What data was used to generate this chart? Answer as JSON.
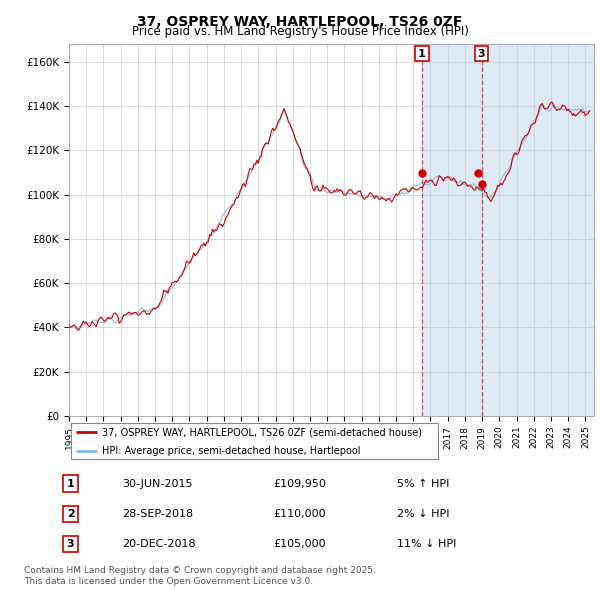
{
  "title": "37, OSPREY WAY, HARTLEPOOL, TS26 0ZF",
  "subtitle": "Price paid vs. HM Land Registry's House Price Index (HPI)",
  "legend_line1": "37, OSPREY WAY, HARTLEPOOL, TS26 0ZF (semi-detached house)",
  "legend_line2": "HPI: Average price, semi-detached house, Hartlepool",
  "hpi_color": "#7fb8d8",
  "price_color": "#cc0000",
  "background_color": "#ddeaf5",
  "plot_bg": "#ffffff",
  "ytick_labels": [
    "£0",
    "£20K",
    "£40K",
    "£60K",
    "£80K",
    "£100K",
    "£120K",
    "£140K",
    "£160K"
  ],
  "yticks": [
    0,
    20000,
    40000,
    60000,
    80000,
    100000,
    120000,
    140000,
    160000
  ],
  "sale_points": [
    {
      "label": "1",
      "date_str": "30-JUN-2015",
      "price": 109950,
      "pct": "5% ↑ HPI",
      "x_year": 2015.5
    },
    {
      "label": "2",
      "date_str": "28-SEP-2018",
      "price": 110000,
      "pct": "2% ↓ HPI",
      "x_year": 2018.75
    },
    {
      "label": "3",
      "date_str": "20-DEC-2018",
      "price": 105000,
      "pct": "11% ↓ HPI",
      "x_year": 2018.97
    }
  ],
  "footnote1": "Contains HM Land Registry data © Crown copyright and database right 2025.",
  "footnote2": "This data is licensed under the Open Government Licence v3.0.",
  "xmin": 1995.0,
  "xmax": 2025.5,
  "ymin": 0,
  "ymax": 168000
}
